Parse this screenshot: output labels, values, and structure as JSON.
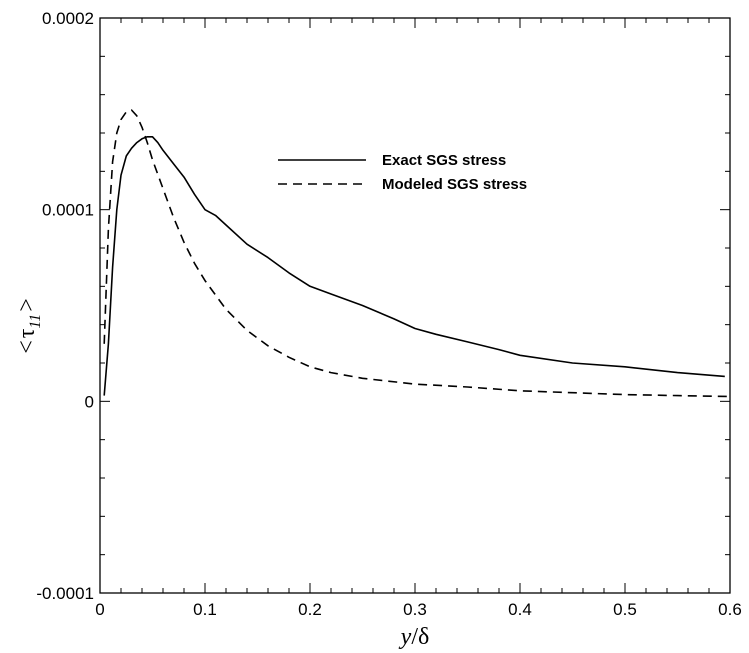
{
  "chart_data": {
    "type": "line",
    "xlabel": {
      "main": "y",
      "sep": "/",
      "sym": "δ"
    },
    "ylabel": {
      "open": "<",
      "sym": "τ",
      "sub": "11",
      "close": ">"
    },
    "xlim": [
      0,
      0.6
    ],
    "ylim": [
      -0.0001,
      0.0002
    ],
    "x_ticks": [
      0,
      0.1,
      0.2,
      0.3,
      0.4,
      0.5,
      0.6
    ],
    "x_tick_labels": [
      "0",
      "0.1",
      "0.2",
      "0.3",
      "0.4",
      "0.5",
      "0.6"
    ],
    "y_ticks": [
      -0.0001,
      0,
      0.0001,
      0.0002
    ],
    "y_tick_labels": [
      "-0.0001",
      "0",
      "0.0001",
      "0.0002"
    ],
    "grid": false,
    "legend_position": "top-right",
    "series": [
      {
        "name": "Exact SGS stress",
        "style": "solid",
        "color": "#000000",
        "x": [
          0.004,
          0.008,
          0.012,
          0.016,
          0.02,
          0.025,
          0.03,
          0.035,
          0.04,
          0.045,
          0.05,
          0.055,
          0.06,
          0.07,
          0.08,
          0.09,
          0.1,
          0.11,
          0.12,
          0.14,
          0.16,
          0.18,
          0.2,
          0.22,
          0.25,
          0.28,
          0.3,
          0.32,
          0.35,
          0.38,
          0.4,
          0.45,
          0.5,
          0.55,
          0.595
        ],
        "y": [
          3e-06,
          3e-05,
          7e-05,
          0.0001,
          0.000118,
          0.000128,
          0.000132,
          0.000135,
          0.000137,
          0.000138,
          0.000138,
          0.000135,
          0.000131,
          0.000124,
          0.000117,
          0.000108,
          0.0001,
          9.7e-05,
          9.2e-05,
          8.2e-05,
          7.5e-05,
          6.7e-05,
          6e-05,
          5.6e-05,
          5e-05,
          4.3e-05,
          3.8e-05,
          3.5e-05,
          3.1e-05,
          2.7e-05,
          2.4e-05,
          2e-05,
          1.8e-05,
          1.5e-05,
          1.3e-05
        ]
      },
      {
        "name": "Modeled SGS stress",
        "style": "dashed",
        "color": "#000000",
        "x": [
          0.004,
          0.008,
          0.012,
          0.016,
          0.02,
          0.025,
          0.03,
          0.035,
          0.04,
          0.045,
          0.05,
          0.06,
          0.07,
          0.08,
          0.09,
          0.1,
          0.12,
          0.14,
          0.16,
          0.18,
          0.2,
          0.22,
          0.25,
          0.3,
          0.35,
          0.4,
          0.45,
          0.5,
          0.55,
          0.6
        ],
        "y": [
          3e-05,
          9e-05,
          0.000125,
          0.00014,
          0.000147,
          0.000151,
          0.000152,
          0.000149,
          0.000143,
          0.000135,
          0.000126,
          0.000111,
          9.6e-05,
          8.3e-05,
          7.2e-05,
          6.3e-05,
          4.8e-05,
          3.7e-05,
          2.9e-05,
          2.3e-05,
          1.8e-05,
          1.5e-05,
          1.2e-05,
          9e-06,
          7.5e-06,
          5.5e-06,
          4.5e-06,
          3.5e-06,
          3e-06,
          2.5e-06
        ]
      }
    ]
  }
}
